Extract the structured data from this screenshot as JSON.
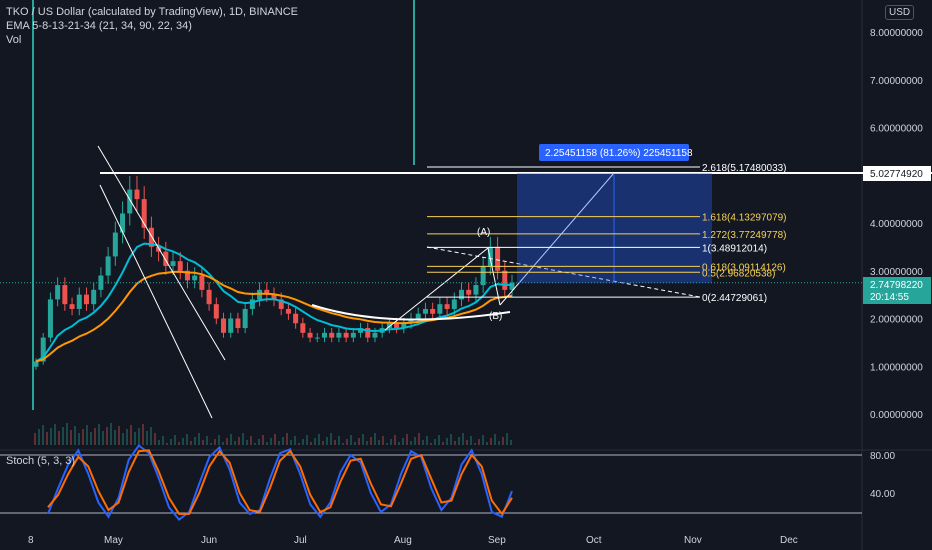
{
  "legend": {
    "symbol": "TKO / US Dollar (calculated by TradingView), 1D, BINANCE",
    "ema": "EMA 5-8-13-21-34 (21, 34, 90, 22, 34)",
    "vol": "Vol"
  },
  "stoch_legend": "Stoch (5, 3, 3)",
  "currency": "USD",
  "colors": {
    "background": "#131722",
    "up": "#26a69a",
    "down": "#ef5350",
    "fib": "#f7d154",
    "measure": "#2962ff",
    "stoch_k": "#2962ff",
    "stoch_d": "#ff6d00",
    "ema_orange": "#ff9800",
    "ema_teal": "#00bcd4"
  },
  "chart_data": [
    {
      "type": "candlestick",
      "title": "TKO / US Dollar (calculated by TradingView), 1D, BINANCE",
      "x_ticks": [
        "8",
        "May",
        "Jun",
        "Jul",
        "Aug",
        "Sep",
        "Oct",
        "Nov",
        "Dec"
      ],
      "y_ticks": [
        "8.00000000",
        "7.00000000",
        "6.00000000",
        "5.00000000",
        "4.00000000",
        "3.00000000",
        "2.00000000",
        "1.00000000",
        "0.00000000"
      ],
      "ylim": [
        0,
        8
      ],
      "price_labels": {
        "resistance": "5.02774920",
        "last_price": "2.74798220",
        "countdown": "20:14:55"
      },
      "measure_label": "2.25451158 (81.26%) 225451158",
      "fib_levels": [
        {
          "label": "2.618(5.17480033)",
          "value": 5.1748
        },
        {
          "label": "1.618(4.13297079)",
          "value": 4.13297
        },
        {
          "label": "1.272(3.77249778)",
          "value": 3.7725
        },
        {
          "label": "1(3.48912014)",
          "value": 3.48912
        },
        {
          "label": "0.618(3.09114126)",
          "value": 3.09114
        },
        {
          "label": "0.5(2.96820538)",
          "value": 2.9682
        },
        {
          "label": "0(2.44729061)",
          "value": 2.44729
        }
      ],
      "annotations": [
        "(A)",
        "(B)"
      ],
      "close_series": [
        1.1,
        1.6,
        2.4,
        2.7,
        2.3,
        2.2,
        2.5,
        2.3,
        2.6,
        2.9,
        3.3,
        3.8,
        4.2,
        4.7,
        4.5,
        3.9,
        3.5,
        3.4,
        3.1,
        3.2,
        3.0,
        2.8,
        2.9,
        2.6,
        2.3,
        2.0,
        1.7,
        2.0,
        1.8,
        2.2,
        2.4,
        2.6,
        2.5,
        2.4,
        2.2,
        2.1,
        1.9,
        1.7,
        1.6,
        1.6,
        1.7,
        1.6,
        1.7,
        1.6,
        1.7,
        1.8,
        1.6,
        1.7,
        1.8,
        1.9,
        1.8,
        1.9,
        2.0,
        2.1,
        2.2,
        2.1,
        2.3,
        2.2,
        2.4,
        2.6,
        2.5,
        2.7,
        3.1,
        3.5,
        3.0,
        2.6,
        2.75
      ]
    },
    {
      "type": "line",
      "title": "Stoch (5, 3, 3)",
      "y_ticks": [
        "80.00",
        "40.00"
      ],
      "ylim": [
        0,
        100
      ],
      "series": [
        {
          "name": "%K",
          "values": [
            18,
            45,
            70,
            85,
            60,
            30,
            15,
            35,
            75,
            90,
            82,
            55,
            25,
            12,
            20,
            50,
            78,
            88,
            65,
            30,
            18,
            22,
            55,
            82,
            86,
            60,
            28,
            15,
            30,
            62,
            80,
            72,
            40,
            20,
            28,
            60,
            84,
            78,
            45,
            22,
            35,
            70,
            85,
            60,
            20,
            15,
            42
          ]
        },
        {
          "name": "%D",
          "values": [
            25,
            38,
            60,
            78,
            68,
            42,
            22,
            30,
            62,
            84,
            85,
            62,
            35,
            18,
            18,
            40,
            68,
            84,
            72,
            40,
            22,
            20,
            45,
            74,
            84,
            68,
            38,
            20,
            25,
            52,
            74,
            76,
            50,
            28,
            26,
            50,
            76,
            80,
            55,
            30,
            32,
            60,
            80,
            68,
            32,
            18,
            35
          ]
        }
      ]
    }
  ]
}
